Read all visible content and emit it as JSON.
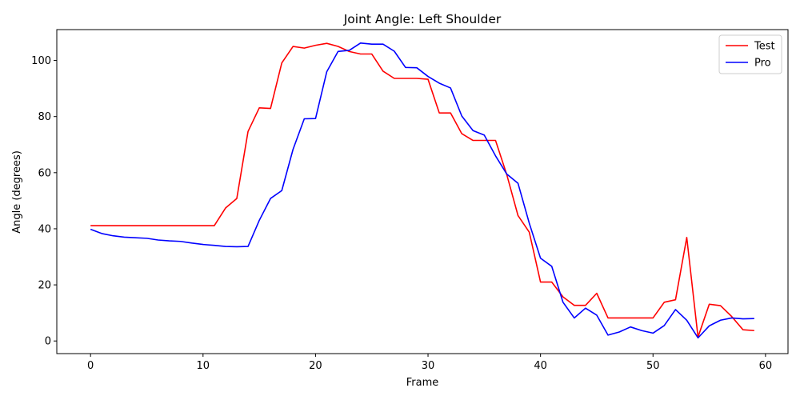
{
  "chart_data": {
    "type": "line",
    "title": "Joint Angle: Left Shoulder",
    "xlabel": "Frame",
    "ylabel": "Angle (degrees)",
    "xlim": [
      -3,
      62
    ],
    "ylim": [
      -4.5,
      111
    ],
    "xticks": [
      0,
      10,
      20,
      30,
      40,
      50,
      60
    ],
    "yticks": [
      0,
      20,
      40,
      60,
      80,
      100
    ],
    "grid": false,
    "legend_position": "upper right",
    "series": [
      {
        "name": "Test",
        "color": "#ff0000",
        "x": [
          0,
          1,
          2,
          3,
          4,
          5,
          6,
          7,
          8,
          9,
          10,
          11,
          12,
          13,
          14,
          15,
          16,
          17,
          18,
          19,
          20,
          21,
          22,
          23,
          24,
          25,
          26,
          27,
          28,
          29,
          30,
          31,
          32,
          33,
          34,
          35,
          36,
          37,
          38,
          39,
          40,
          41,
          42,
          43,
          44,
          45,
          46,
          47,
          48,
          49,
          50,
          51,
          52,
          53,
          54,
          55,
          56,
          57,
          58,
          59
        ],
        "values": [
          41.1,
          41.1,
          41.1,
          41.1,
          41.1,
          41.1,
          41.1,
          41.1,
          41.1,
          41.1,
          41.1,
          41.1,
          47.4,
          50.8,
          74.7,
          83.1,
          82.9,
          99.1,
          105.0,
          104.4,
          105.4,
          106.1,
          105.0,
          103.2,
          102.3,
          102.3,
          96.2,
          93.6,
          93.6,
          93.6,
          93.3,
          81.3,
          81.3,
          73.9,
          71.5,
          71.5,
          71.5,
          59.3,
          44.7,
          38.8,
          21.0,
          21.0,
          15.7,
          12.7,
          12.7,
          17.0,
          8.2,
          8.2,
          8.2,
          8.2,
          8.2,
          13.8,
          14.7,
          36.9,
          1.4,
          13.1,
          12.6,
          8.7,
          4.0,
          3.7
        ]
      },
      {
        "name": "Pro",
        "color": "#0000ff",
        "x": [
          0,
          1,
          2,
          3,
          4,
          5,
          6,
          7,
          8,
          9,
          10,
          11,
          12,
          13,
          14,
          15,
          16,
          17,
          18,
          19,
          20,
          21,
          22,
          23,
          24,
          25,
          26,
          27,
          28,
          29,
          30,
          31,
          32,
          33,
          34,
          35,
          36,
          37,
          38,
          39,
          40,
          41,
          42,
          43,
          44,
          45,
          46,
          47,
          48,
          49,
          50,
          51,
          52,
          53,
          54,
          55,
          56,
          57,
          58,
          59
        ],
        "values": [
          39.8,
          38.3,
          37.5,
          37.0,
          36.8,
          36.6,
          36.0,
          35.7,
          35.5,
          34.9,
          34.4,
          34.1,
          33.7,
          33.6,
          33.7,
          43.0,
          50.8,
          53.6,
          68.3,
          79.2,
          79.3,
          96.0,
          103.2,
          103.6,
          106.2,
          105.8,
          105.8,
          103.3,
          97.5,
          97.4,
          94.3,
          91.9,
          90.2,
          80.2,
          75.0,
          73.4,
          66.0,
          59.5,
          56.2,
          42.0,
          29.5,
          26.6,
          13.8,
          8.2,
          11.7,
          9.2,
          2.1,
          3.2,
          5.0,
          3.7,
          2.8,
          5.5,
          11.2,
          7.4,
          1.1,
          5.4,
          7.4,
          8.2,
          7.9,
          8.0
        ]
      }
    ]
  }
}
